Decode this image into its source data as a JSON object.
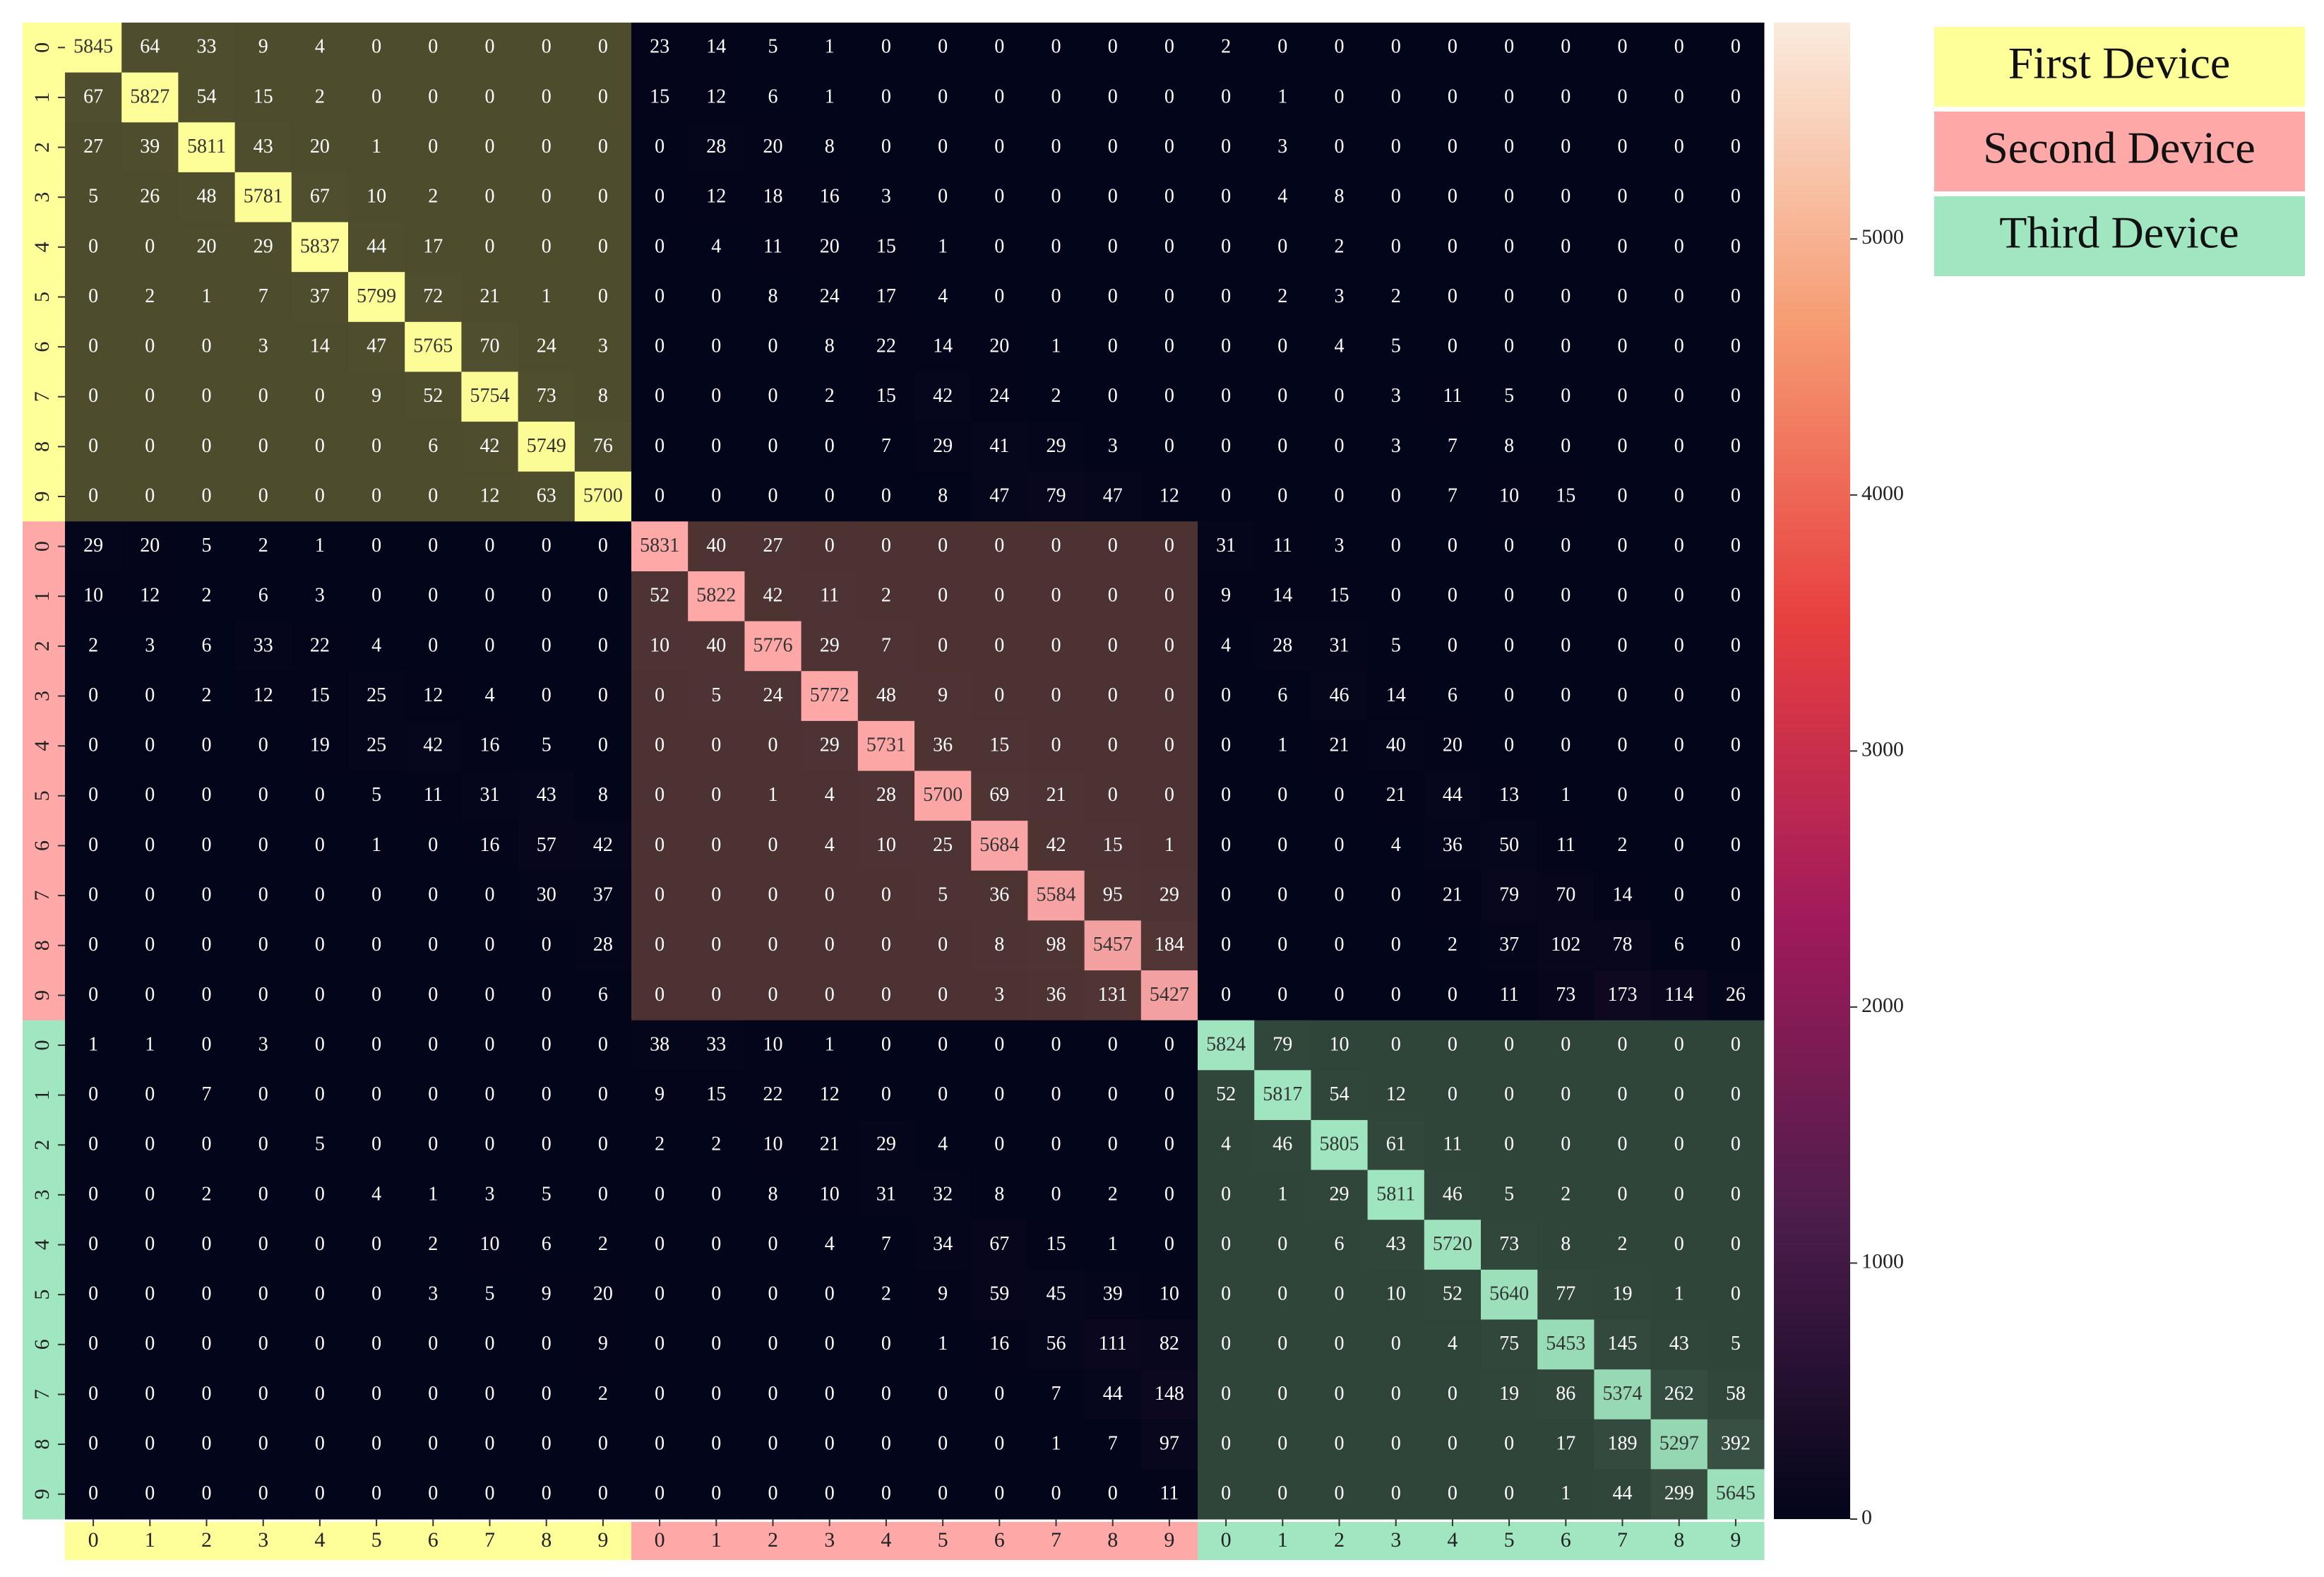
{
  "chart_data": {
    "type": "heatmap",
    "colormap": "rocket",
    "row_labels": [
      "0",
      "1",
      "2",
      "3",
      "4",
      "5",
      "6",
      "7",
      "8",
      "9",
      "0",
      "1",
      "2",
      "3",
      "4",
      "5",
      "6",
      "7",
      "8",
      "9",
      "0",
      "1",
      "2",
      "3",
      "4",
      "5",
      "6",
      "7",
      "8",
      "9"
    ],
    "col_labels": [
      "0",
      "1",
      "2",
      "3",
      "4",
      "5",
      "6",
      "7",
      "8",
      "9",
      "0",
      "1",
      "2",
      "3",
      "4",
      "5",
      "6",
      "7",
      "8",
      "9",
      "0",
      "1",
      "2",
      "3",
      "4",
      "5",
      "6",
      "7",
      "8",
      "9"
    ],
    "groups": [
      {
        "name": "First Device",
        "color": "#ffff99"
      },
      {
        "name": "Second Device",
        "color": "#ffa8a8"
      },
      {
        "name": "Third Device",
        "color": "#a0e6c0"
      }
    ],
    "zlim": [
      0,
      5845
    ],
    "zticks": [
      0,
      1000,
      2000,
      3000,
      4000,
      5000
    ],
    "values": [
      [
        5845,
        64,
        33,
        9,
        4,
        0,
        0,
        0,
        0,
        0,
        23,
        14,
        5,
        1,
        0,
        0,
        0,
        0,
        0,
        0,
        2,
        0,
        0,
        0,
        0,
        0,
        0,
        0,
        0,
        0
      ],
      [
        67,
        5827,
        54,
        15,
        2,
        0,
        0,
        0,
        0,
        0,
        15,
        12,
        6,
        1,
        0,
        0,
        0,
        0,
        0,
        0,
        0,
        1,
        0,
        0,
        0,
        0,
        0,
        0,
        0,
        0
      ],
      [
        27,
        39,
        5811,
        43,
        20,
        1,
        0,
        0,
        0,
        0,
        0,
        28,
        20,
        8,
        0,
        0,
        0,
        0,
        0,
        0,
        0,
        3,
        0,
        0,
        0,
        0,
        0,
        0,
        0,
        0
      ],
      [
        5,
        26,
        48,
        5781,
        67,
        10,
        2,
        0,
        0,
        0,
        0,
        12,
        18,
        16,
        3,
        0,
        0,
        0,
        0,
        0,
        0,
        4,
        8,
        0,
        0,
        0,
        0,
        0,
        0,
        0
      ],
      [
        0,
        0,
        20,
        29,
        5837,
        44,
        17,
        0,
        0,
        0,
        0,
        4,
        11,
        20,
        15,
        1,
        0,
        0,
        0,
        0,
        0,
        0,
        2,
        0,
        0,
        0,
        0,
        0,
        0,
        0
      ],
      [
        0,
        2,
        1,
        7,
        37,
        5799,
        72,
        21,
        1,
        0,
        0,
        0,
        8,
        24,
        17,
        4,
        0,
        0,
        0,
        0,
        0,
        2,
        3,
        2,
        0,
        0,
        0,
        0,
        0,
        0
      ],
      [
        0,
        0,
        0,
        3,
        14,
        47,
        5765,
        70,
        24,
        3,
        0,
        0,
        0,
        8,
        22,
        14,
        20,
        1,
        0,
        0,
        0,
        0,
        4,
        5,
        0,
        0,
        0,
        0,
        0,
        0
      ],
      [
        0,
        0,
        0,
        0,
        0,
        9,
        52,
        5754,
        73,
        8,
        0,
        0,
        0,
        2,
        15,
        42,
        24,
        2,
        0,
        0,
        0,
        0,
        0,
        3,
        11,
        5,
        0,
        0,
        0,
        0
      ],
      [
        0,
        0,
        0,
        0,
        0,
        0,
        6,
        42,
        5749,
        76,
        0,
        0,
        0,
        0,
        7,
        29,
        41,
        29,
        3,
        0,
        0,
        0,
        0,
        3,
        7,
        8,
        0,
        0,
        0,
        0
      ],
      [
        0,
        0,
        0,
        0,
        0,
        0,
        0,
        12,
        63,
        5700,
        0,
        0,
        0,
        0,
        0,
        8,
        47,
        79,
        47,
        12,
        0,
        0,
        0,
        0,
        7,
        10,
        15,
        0,
        0,
        0
      ],
      [
        29,
        20,
        5,
        2,
        1,
        0,
        0,
        0,
        0,
        0,
        5831,
        40,
        27,
        0,
        0,
        0,
        0,
        0,
        0,
        0,
        31,
        11,
        3,
        0,
        0,
        0,
        0,
        0,
        0,
        0
      ],
      [
        10,
        12,
        2,
        6,
        3,
        0,
        0,
        0,
        0,
        0,
        52,
        5822,
        42,
        11,
        2,
        0,
        0,
        0,
        0,
        0,
        9,
        14,
        15,
        0,
        0,
        0,
        0,
        0,
        0,
        0
      ],
      [
        2,
        3,
        6,
        33,
        22,
        4,
        0,
        0,
        0,
        0,
        10,
        40,
        5776,
        29,
        7,
        0,
        0,
        0,
        0,
        0,
        4,
        28,
        31,
        5,
        0,
        0,
        0,
        0,
        0,
        0
      ],
      [
        0,
        0,
        2,
        12,
        15,
        25,
        12,
        4,
        0,
        0,
        0,
        5,
        24,
        5772,
        48,
        9,
        0,
        0,
        0,
        0,
        0,
        6,
        46,
        14,
        6,
        0,
        0,
        0,
        0,
        0
      ],
      [
        0,
        0,
        0,
        0,
        19,
        25,
        42,
        16,
        5,
        0,
        0,
        0,
        0,
        29,
        5731,
        36,
        15,
        0,
        0,
        0,
        0,
        1,
        21,
        40,
        20,
        0,
        0,
        0,
        0,
        0
      ],
      [
        0,
        0,
        0,
        0,
        0,
        5,
        11,
        31,
        43,
        8,
        0,
        0,
        1,
        4,
        28,
        5700,
        69,
        21,
        0,
        0,
        0,
        0,
        0,
        21,
        44,
        13,
        1,
        0,
        0,
        0
      ],
      [
        0,
        0,
        0,
        0,
        0,
        1,
        0,
        16,
        57,
        42,
        0,
        0,
        0,
        4,
        10,
        25,
        5684,
        42,
        15,
        1,
        0,
        0,
        0,
        4,
        36,
        50,
        11,
        2,
        0,
        0
      ],
      [
        0,
        0,
        0,
        0,
        0,
        0,
        0,
        0,
        30,
        37,
        0,
        0,
        0,
        0,
        0,
        5,
        36,
        5584,
        95,
        29,
        0,
        0,
        0,
        0,
        21,
        79,
        70,
        14,
        0,
        0
      ],
      [
        0,
        0,
        0,
        0,
        0,
        0,
        0,
        0,
        0,
        28,
        0,
        0,
        0,
        0,
        0,
        0,
        8,
        98,
        5457,
        184,
        0,
        0,
        0,
        0,
        2,
        37,
        102,
        78,
        6,
        0
      ],
      [
        0,
        0,
        0,
        0,
        0,
        0,
        0,
        0,
        0,
        6,
        0,
        0,
        0,
        0,
        0,
        0,
        3,
        36,
        131,
        5427,
        0,
        0,
        0,
        0,
        0,
        11,
        73,
        173,
        114,
        26
      ],
      [
        1,
        1,
        0,
        3,
        0,
        0,
        0,
        0,
        0,
        0,
        38,
        33,
        10,
        1,
        0,
        0,
        0,
        0,
        0,
        0,
        5824,
        79,
        10,
        0,
        0,
        0,
        0,
        0,
        0,
        0
      ],
      [
        0,
        0,
        7,
        0,
        0,
        0,
        0,
        0,
        0,
        0,
        9,
        15,
        22,
        12,
        0,
        0,
        0,
        0,
        0,
        0,
        52,
        5817,
        54,
        12,
        0,
        0,
        0,
        0,
        0,
        0
      ],
      [
        0,
        0,
        0,
        0,
        5,
        0,
        0,
        0,
        0,
        0,
        2,
        2,
        10,
        21,
        29,
        4,
        0,
        0,
        0,
        0,
        4,
        46,
        5805,
        61,
        11,
        0,
        0,
        0,
        0,
        0
      ],
      [
        0,
        0,
        2,
        0,
        0,
        4,
        1,
        3,
        5,
        0,
        0,
        0,
        8,
        10,
        31,
        32,
        8,
        0,
        2,
        0,
        0,
        1,
        29,
        5811,
        46,
        5,
        2,
        0,
        0,
        0
      ],
      [
        0,
        0,
        0,
        0,
        0,
        0,
        2,
        10,
        6,
        2,
        0,
        0,
        0,
        4,
        7,
        34,
        67,
        15,
        1,
        0,
        0,
        0,
        6,
        43,
        5720,
        73,
        8,
        2,
        0,
        0
      ],
      [
        0,
        0,
        0,
        0,
        0,
        0,
        3,
        5,
        9,
        20,
        0,
        0,
        0,
        0,
        2,
        9,
        59,
        45,
        39,
        10,
        0,
        0,
        0,
        10,
        52,
        5640,
        77,
        19,
        1,
        0
      ],
      [
        0,
        0,
        0,
        0,
        0,
        0,
        0,
        0,
        0,
        9,
        0,
        0,
        0,
        0,
        0,
        1,
        16,
        56,
        111,
        82,
        0,
        0,
        0,
        0,
        4,
        75,
        5453,
        145,
        43,
        5
      ],
      [
        0,
        0,
        0,
        0,
        0,
        0,
        0,
        0,
        0,
        2,
        0,
        0,
        0,
        0,
        0,
        0,
        0,
        7,
        44,
        148,
        0,
        0,
        0,
        0,
        0,
        19,
        86,
        5374,
        262,
        58
      ],
      [
        0,
        0,
        0,
        0,
        0,
        0,
        0,
        0,
        0,
        0,
        0,
        0,
        0,
        0,
        0,
        0,
        0,
        1,
        7,
        97,
        0,
        0,
        0,
        0,
        0,
        0,
        17,
        189,
        5297,
        392
      ],
      [
        0,
        0,
        0,
        0,
        0,
        0,
        0,
        0,
        0,
        0,
        0,
        0,
        0,
        0,
        0,
        0,
        0,
        0,
        0,
        11,
        0,
        0,
        0,
        0,
        0,
        0,
        1,
        44,
        299,
        5645
      ]
    ]
  }
}
